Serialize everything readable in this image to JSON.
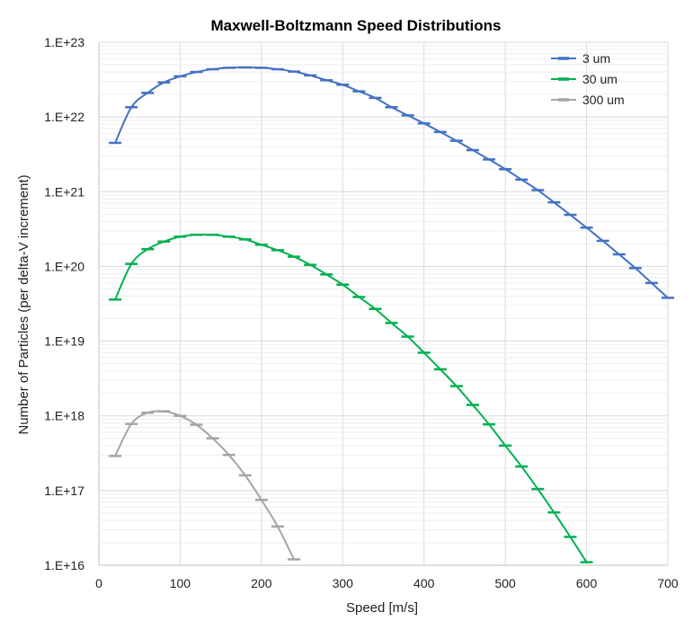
{
  "chart_data": {
    "type": "line",
    "title": "Maxwell-Boltzmann Speed Distributions",
    "xlabel": "Speed  [m/s]",
    "ylabel": "Number of Particles (per delta-V increment)",
    "xlim": [
      0,
      700
    ],
    "ylim": [
      1e+16,
      1e+23
    ],
    "y_scale": "log",
    "x_ticks": [
      0,
      100,
      200,
      300,
      400,
      500,
      600,
      700
    ],
    "x_tick_labels": [
      "0",
      "100",
      "200",
      "300",
      "400",
      "500",
      "600",
      "700"
    ],
    "y_ticks": [
      1e+16,
      1e+17,
      1e+18,
      1e+19,
      1e+20,
      1e+21,
      1e+22,
      1e+23
    ],
    "y_tick_labels": [
      "1.E+16",
      "1.E+17",
      "1.E+18",
      "1.E+19",
      "1.E+20",
      "1.E+21",
      "1.E+22",
      "1.E+23"
    ],
    "grid": true,
    "legend_position": "top-right",
    "series": [
      {
        "name": "3 um",
        "color": "#4472c4",
        "x": [
          20,
          40,
          60,
          80,
          100,
          120,
          140,
          160,
          180,
          200,
          220,
          240,
          260,
          280,
          300,
          320,
          340,
          360,
          380,
          400,
          420,
          440,
          460,
          480,
          500,
          520,
          540,
          560,
          580,
          600,
          620,
          640,
          660,
          680,
          700
        ],
        "y": [
          4.5e+21,
          1.35e+22,
          2.1e+22,
          2.9e+22,
          3.5e+22,
          4e+22,
          4.35e+22,
          4.55e+22,
          4.6e+22,
          4.55e+22,
          4.35e+22,
          4.05e+22,
          3.6e+22,
          3.1e+22,
          2.7e+22,
          2.2e+22,
          1.8e+22,
          1.35e+22,
          1.05e+22,
          8.2e+21,
          6.3e+21,
          4.8e+21,
          3.6e+21,
          2.7e+21,
          2e+21,
          1.45e+21,
          1.05e+21,
          7.2e+20,
          4.9e+20,
          3.3e+20,
          2.2e+20,
          1.45e+20,
          9.5e+19,
          6e+19,
          3.8e+19
        ]
      },
      {
        "name": "30 um",
        "color": "#00b050",
        "x": [
          20,
          40,
          60,
          80,
          100,
          120,
          140,
          160,
          180,
          200,
          220,
          240,
          260,
          280,
          300,
          320,
          340,
          360,
          380,
          400,
          420,
          440,
          460,
          480,
          500,
          520,
          540,
          560,
          580,
          600
        ],
        "y": [
          3.6e+19,
          1.08e+20,
          1.7e+20,
          2.15e+20,
          2.5e+20,
          2.65e+20,
          2.65e+20,
          2.5e+20,
          2.3e+20,
          1.95e+20,
          1.65e+20,
          1.35e+20,
          1.05e+20,
          7.8e+19,
          5.7e+19,
          3.9e+19,
          2.7e+19,
          1.75e+19,
          1.15e+19,
          7e+18,
          4.2e+18,
          2.5e+18,
          1.4e+18,
          7.7e+17,
          4e+17,
          2.1e+17,
          1.05e+17,
          5.1e+16,
          2.4e+16,
          1.1e+16
        ]
      },
      {
        "name": "300 um",
        "color": "#a5a5a5",
        "x": [
          20,
          40,
          60,
          80,
          100,
          120,
          140,
          160,
          180,
          200,
          220,
          240
        ],
        "y": [
          2.9e+17,
          7.8e+17,
          1.1e+18,
          1.15e+18,
          1e+18,
          7.6e+17,
          5e+17,
          3e+17,
          1.6e+17,
          7.5e+16,
          3.3e+16,
          1.2e+16
        ]
      }
    ]
  }
}
